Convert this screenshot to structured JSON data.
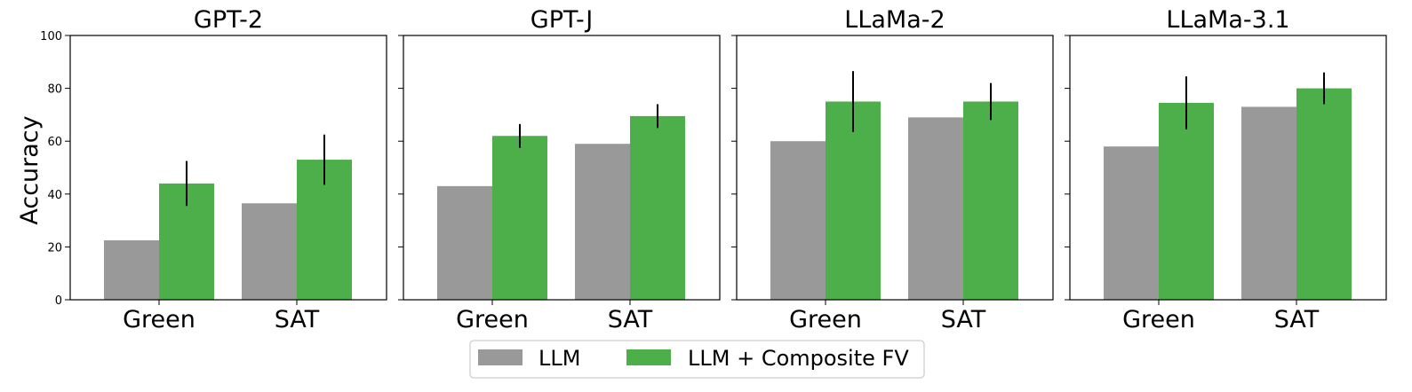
{
  "chart_data": {
    "type": "bar",
    "ylabel": "Accuracy",
    "ylim": [
      0,
      100
    ],
    "yticks": [
      "0",
      "20",
      "40",
      "60",
      "80",
      "100"
    ],
    "categories": [
      "Green",
      "SAT"
    ],
    "colors": {
      "LLM": "#999999",
      "LLM + Composite FV": "#4daf4a",
      "error": "#000000",
      "axis": "#000000"
    },
    "legend": {
      "placement": "bottom-center",
      "entries": [
        "LLM",
        "LLM + Composite FV"
      ]
    },
    "panels": [
      {
        "title": "GPT-2",
        "series": [
          {
            "name": "LLM",
            "values": [
              22.5,
              36.5
            ]
          },
          {
            "name": "LLM + Composite FV",
            "values": [
              44,
              53
            ],
            "errors": [
              8.5,
              9.5
            ]
          }
        ]
      },
      {
        "title": "GPT-J",
        "series": [
          {
            "name": "LLM",
            "values": [
              43,
              59
            ]
          },
          {
            "name": "LLM + Composite FV",
            "values": [
              62,
              69.5
            ],
            "errors": [
              4.5,
              4.5
            ]
          }
        ]
      },
      {
        "title": "LLaMa-2",
        "series": [
          {
            "name": "LLM",
            "values": [
              60,
              69
            ]
          },
          {
            "name": "LLM + Composite FV",
            "values": [
              75,
              75
            ],
            "errors": [
              11.5,
              7
            ]
          }
        ]
      },
      {
        "title": "LLaMa-3.1",
        "series": [
          {
            "name": "LLM",
            "values": [
              58,
              73
            ]
          },
          {
            "name": "LLM + Composite FV",
            "values": [
              74.5,
              80
            ],
            "errors": [
              10,
              6
            ]
          }
        ]
      }
    ]
  }
}
